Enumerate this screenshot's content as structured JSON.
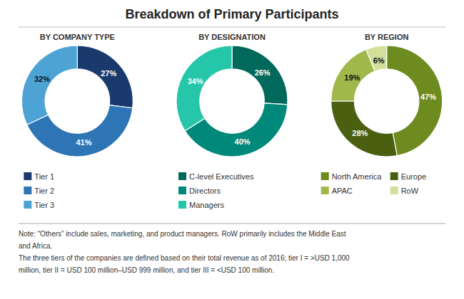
{
  "title": "Breakdown of Primary Participants",
  "annotations": [
    "Note: “Others” include sales, marketing, and product managers. RoW primarily includes the Middle East",
    "and Africa.",
    "The three tiers of the companies are defined based on their total revenue as of 2016; tier I = >USD 1,000",
    "million, tier II = USD 100 million–USD 999 million, and tier III = <USD 100 million."
  ],
  "chart_data": [
    {
      "type": "donut",
      "title": "BY COMPANY TYPE",
      "categories": [
        "Tier 1",
        "Tier 2",
        "Tier 3"
      ],
      "values": [
        27,
        41,
        32
      ],
      "value_labels": [
        "27%",
        "41%",
        "32%"
      ],
      "colors": [
        "#1a3a6e",
        "#2e75b6",
        "#4da3d4"
      ],
      "data_labels": true,
      "legend": "bottom"
    },
    {
      "type": "donut",
      "title": "BY DESIGNATION",
      "categories": [
        "C-level Executives",
        "Directors",
        "Managers"
      ],
      "values": [
        26,
        40,
        34
      ],
      "value_labels": [
        "26%",
        "40%",
        "34%"
      ],
      "colors": [
        "#00695c",
        "#00897b",
        "#26c6aa"
      ],
      "data_labels": true,
      "legend": "bottom"
    },
    {
      "type": "donut",
      "title": "BY REGION",
      "categories": [
        "North America",
        "Europe",
        "APAC",
        "RoW"
      ],
      "values": [
        47,
        28,
        19,
        6
      ],
      "value_labels": [
        "47%",
        "28%",
        "19%",
        "6%"
      ],
      "colors": [
        "#6d8b1e",
        "#4a6010",
        "#a0b84b",
        "#d4e09a"
      ],
      "data_labels": true,
      "legend": "bottom"
    }
  ]
}
